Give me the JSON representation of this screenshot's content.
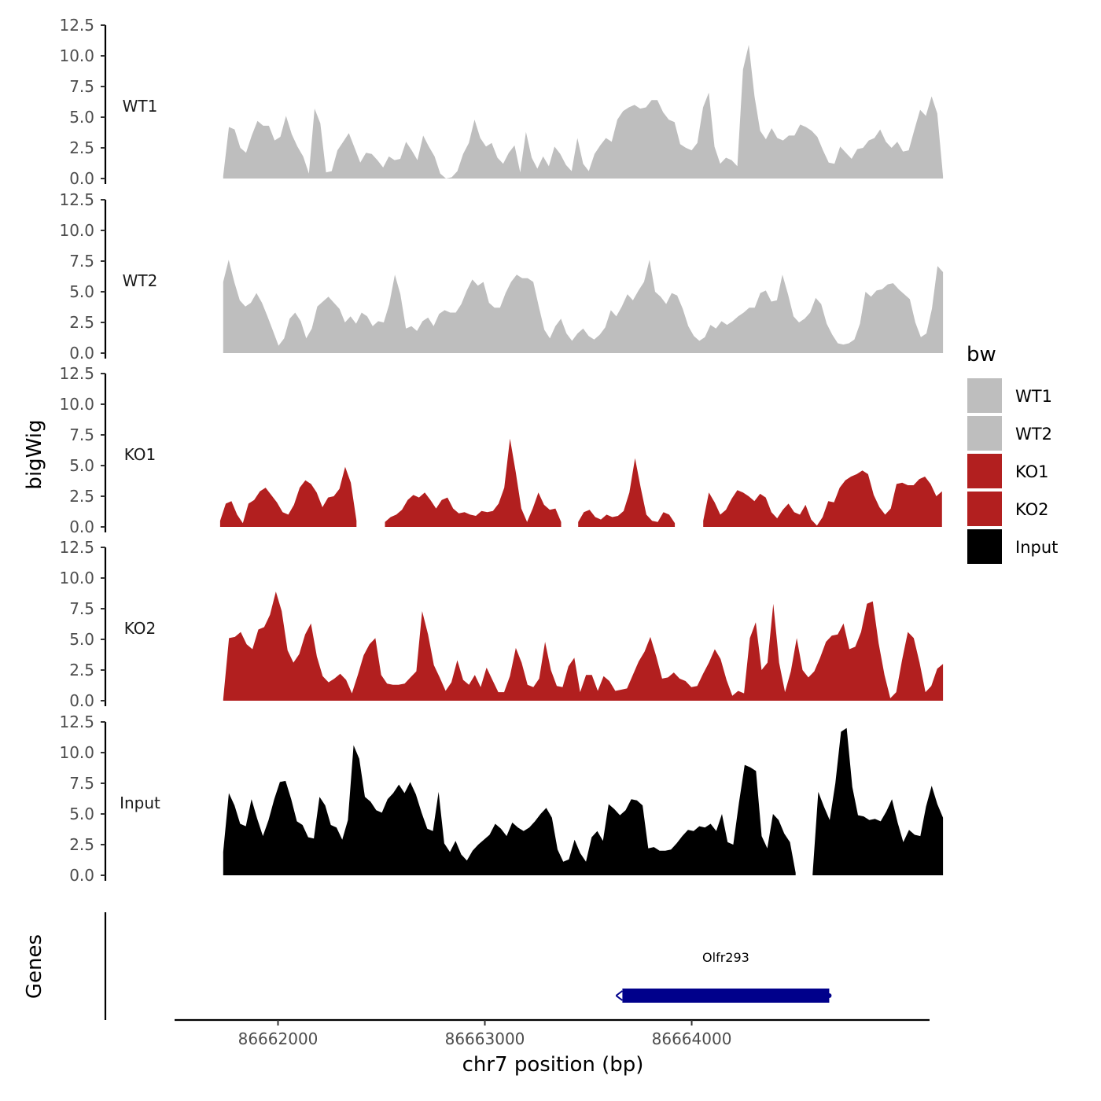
{
  "chart_data": {
    "type": "area",
    "ylabel": "bigWig",
    "xlabel": "chr7 position (bp)",
    "xlim": [
      86661500,
      86665150
    ],
    "ylim": [
      0,
      12.5
    ],
    "x_ticks": [
      86662000,
      86663000,
      86664000
    ],
    "x_tick_labels": [
      "86662000",
      "86663000",
      "86664000"
    ],
    "y_ticks": [
      0,
      2.5,
      5,
      7.5,
      10,
      12.5
    ],
    "y_tick_labels": [
      "0.0",
      "2.5",
      "5.0",
      "7.5",
      "10.0",
      "12.5"
    ],
    "genes_label": "Genes",
    "legend": {
      "title": "bw",
      "placement": "right"
    },
    "series": [
      {
        "name": "WT1",
        "color": "#bebebe",
        "x_start": 86661735,
        "x_end": 86665215,
        "values": [
          0.2,
          4.2,
          4.0,
          2.5,
          2.1,
          3.5,
          4.7,
          4.3,
          4.3,
          3.1,
          3.4,
          5.1,
          3.6,
          2.6,
          1.8,
          0.4,
          5.7,
          4.5,
          0.5,
          0.6,
          2.3,
          3.0,
          3.7,
          2.5,
          1.3,
          2.1,
          2.0,
          1.5,
          0.9,
          1.8,
          1.5,
          1.6,
          3.0,
          2.3,
          1.5,
          3.5,
          2.6,
          1.8,
          0.4,
          0.0,
          0.1,
          0.6,
          2.0,
          2.9,
          4.8,
          3.3,
          2.6,
          2.9,
          1.7,
          1.2,
          2.1,
          2.7,
          0.5,
          3.8,
          1.7,
          0.8,
          1.8,
          1.0,
          2.6,
          2.0,
          1.1,
          0.6,
          3.3,
          1.2,
          0.6,
          2.0,
          2.7,
          3.3,
          3.0,
          4.8,
          5.5,
          5.8,
          6.0,
          5.7,
          5.8,
          6.4,
          6.4,
          5.4,
          4.8,
          4.6,
          2.8,
          2.5,
          2.3,
          2.9,
          5.8,
          7.0,
          2.6,
          1.2,
          1.7,
          1.5,
          1.0,
          8.9,
          10.9,
          6.7,
          3.9,
          3.2,
          4.1,
          3.3,
          3.1,
          3.5,
          3.5,
          4.4,
          4.2,
          3.9,
          3.4,
          2.3,
          1.3,
          1.2,
          2.6,
          2.1,
          1.6,
          2.4,
          2.5,
          3.1,
          3.3,
          4.0,
          3.0,
          2.5,
          3.0,
          2.2,
          2.3,
          4.0,
          5.6,
          5.1,
          6.7,
          5.3,
          0.2
        ]
      },
      {
        "name": "WT2",
        "color": "#bebebe",
        "x_start": 86661735,
        "x_end": 86665215,
        "values": [
          5.8,
          7.6,
          5.8,
          4.3,
          3.8,
          4.1,
          4.9,
          4.1,
          3.0,
          1.8,
          0.6,
          1.2,
          2.8,
          3.3,
          2.6,
          1.2,
          2.0,
          3.8,
          4.2,
          4.6,
          4.1,
          3.6,
          2.5,
          3.0,
          2.4,
          3.3,
          3.0,
          2.2,
          2.6,
          2.5,
          4.0,
          6.4,
          4.8,
          2.0,
          2.2,
          1.8,
          2.6,
          2.9,
          2.2,
          3.2,
          3.5,
          3.3,
          3.3,
          4.0,
          5.1,
          6.0,
          5.5,
          5.8,
          4.1,
          3.7,
          3.7,
          4.9,
          5.8,
          6.4,
          6.1,
          6.1,
          5.8,
          3.8,
          1.9,
          1.2,
          2.2,
          2.8,
          1.6,
          1.0,
          1.6,
          2.0,
          1.4,
          1.1,
          1.5,
          2.1,
          3.5,
          3.0,
          3.8,
          4.8,
          4.3,
          5.1,
          5.8,
          7.6,
          5.0,
          4.6,
          4.0,
          4.9,
          4.7,
          3.6,
          2.2,
          1.4,
          1.0,
          1.3,
          2.3,
          2.0,
          2.6,
          2.3,
          2.6,
          3.0,
          3.3,
          3.7,
          3.7,
          4.9,
          5.1,
          4.2,
          4.3,
          6.4,
          4.8,
          3.0,
          2.5,
          2.8,
          3.3,
          4.5,
          4.0,
          2.4,
          1.5,
          0.8,
          0.7,
          0.8,
          1.1,
          2.4,
          5.0,
          4.6,
          5.1,
          5.2,
          5.6,
          5.7,
          5.2,
          4.8,
          4.4,
          2.5,
          1.3,
          1.6,
          3.6,
          7.1,
          6.6
        ]
      },
      {
        "name": "KO1",
        "color": "#b21f1f",
        "x_start": 86661720,
        "x_end": 86665210,
        "values": [
          0.5,
          1.9,
          2.1,
          1.0,
          0.3,
          1.9,
          2.2,
          2.9,
          3.2,
          2.6,
          2.0,
          1.2,
          1.0,
          1.8,
          3.2,
          3.8,
          3.5,
          2.8,
          1.6,
          2.4,
          2.5,
          3.1,
          4.9,
          3.6,
          0.5,
          null,
          null,
          null,
          null,
          0.4,
          0.8,
          1.0,
          1.4,
          2.2,
          2.6,
          2.4,
          2.8,
          2.2,
          1.5,
          2.2,
          2.4,
          1.5,
          1.1,
          1.2,
          1.0,
          0.9,
          1.3,
          1.2,
          1.3,
          1.9,
          3.2,
          7.2,
          4.5,
          1.5,
          0.4,
          1.5,
          2.8,
          1.8,
          1.4,
          1.5,
          0.4,
          null,
          null,
          0.4,
          1.2,
          1.4,
          0.8,
          0.6,
          1.0,
          0.8,
          0.9,
          1.3,
          2.8,
          5.6,
          3.2,
          1.0,
          0.5,
          0.4,
          1.2,
          1.0,
          0.3,
          null,
          null,
          null,
          null,
          0.5,
          2.8,
          2.0,
          1.0,
          1.4,
          2.3,
          3.0,
          2.8,
          2.5,
          2.1,
          2.7,
          2.4,
          1.2,
          0.7,
          1.4,
          1.9,
          1.2,
          1.0,
          1.8,
          0.6,
          0.1,
          0.8,
          2.1,
          2.0,
          3.2,
          3.8,
          4.1,
          4.3,
          4.6,
          4.3,
          2.6,
          1.6,
          1.0,
          1.5,
          3.5,
          3.6,
          3.4,
          3.4,
          3.9,
          4.1,
          3.5,
          2.5,
          2.9
        ]
      },
      {
        "name": "KO2",
        "color": "#b21f1f",
        "x_start": 86661735,
        "x_end": 86665215,
        "values": [
          0.1,
          5.1,
          5.2,
          5.6,
          4.6,
          4.2,
          5.8,
          6.0,
          7.0,
          8.9,
          7.3,
          4.1,
          3.1,
          3.8,
          5.4,
          6.3,
          3.6,
          2.0,
          1.5,
          1.8,
          2.2,
          1.7,
          0.6,
          2.1,
          3.7,
          4.6,
          5.1,
          2.1,
          1.4,
          1.3,
          1.3,
          1.4,
          1.9,
          2.4,
          7.3,
          5.4,
          2.9,
          1.9,
          0.8,
          1.5,
          3.3,
          1.7,
          1.3,
          2.1,
          1.1,
          2.7,
          1.7,
          0.7,
          0.7,
          2.0,
          4.3,
          3.1,
          1.3,
          1.1,
          1.8,
          4.8,
          2.5,
          1.2,
          1.1,
          2.8,
          3.5,
          0.7,
          2.1,
          2.1,
          0.8,
          2.0,
          1.6,
          0.8,
          0.9,
          1.0,
          2.1,
          3.2,
          4.0,
          5.2,
          3.6,
          1.8,
          1.9,
          2.3,
          1.8,
          1.6,
          1.1,
          1.2,
          2.2,
          3.1,
          4.2,
          3.4,
          1.7,
          0.4,
          0.8,
          0.6,
          5.1,
          6.4,
          2.5,
          3.1,
          7.9,
          3.1,
          0.7,
          2.4,
          5.1,
          2.5,
          1.9,
          2.4,
          3.5,
          4.8,
          5.3,
          5.4,
          6.3,
          4.2,
          4.4,
          5.6,
          7.9,
          8.1,
          4.7,
          2.1,
          0.2,
          0.7,
          3.3,
          5.6,
          5.1,
          3.1,
          0.7,
          1.2,
          2.6,
          3.0
        ]
      },
      {
        "name": "Input",
        "color": "#000000",
        "x_start": 86661735,
        "x_end": 86665215,
        "values": [
          1.9,
          6.7,
          5.7,
          4.2,
          4.0,
          6.2,
          4.6,
          3.2,
          4.5,
          6.2,
          7.6,
          7.7,
          6.2,
          4.4,
          4.1,
          3.1,
          3.0,
          6.4,
          5.7,
          4.1,
          3.9,
          2.9,
          4.5,
          10.6,
          9.5,
          6.4,
          6.0,
          5.3,
          5.1,
          6.2,
          6.7,
          7.4,
          6.7,
          7.6,
          6.6,
          5.1,
          3.8,
          3.6,
          6.8,
          2.6,
          1.9,
          2.8,
          1.7,
          1.2,
          2.0,
          2.5,
          2.9,
          3.3,
          4.2,
          3.8,
          3.2,
          4.3,
          3.9,
          3.6,
          3.9,
          4.4,
          5.0,
          5.5,
          4.7,
          2.1,
          1.1,
          1.3,
          2.9,
          1.8,
          1.1,
          3.1,
          3.6,
          2.8,
          5.8,
          5.4,
          4.9,
          5.3,
          6.2,
          6.1,
          5.7,
          2.2,
          2.3,
          2.0,
          2.0,
          2.1,
          2.6,
          3.2,
          3.7,
          3.6,
          4.0,
          3.9,
          4.2,
          3.6,
          5.0,
          2.7,
          2.5,
          5.9,
          9.0,
          8.8,
          8.5,
          3.2,
          2.2,
          5.0,
          4.5,
          3.4,
          2.7,
          0.2,
          null,
          null,
          0.1,
          6.8,
          5.6,
          4.5,
          7.5,
          11.7,
          12.0,
          7.2,
          4.9,
          4.8,
          4.5,
          4.6,
          4.4,
          5.2,
          6.2,
          4.3,
          2.7,
          3.7,
          3.3,
          3.2,
          5.6,
          7.3,
          5.8,
          4.7
        ]
      }
    ],
    "genes": [
      {
        "name": "Olfr293",
        "start": 86663665,
        "end": 86664665,
        "color": "#00008b",
        "strand": "-"
      }
    ]
  }
}
